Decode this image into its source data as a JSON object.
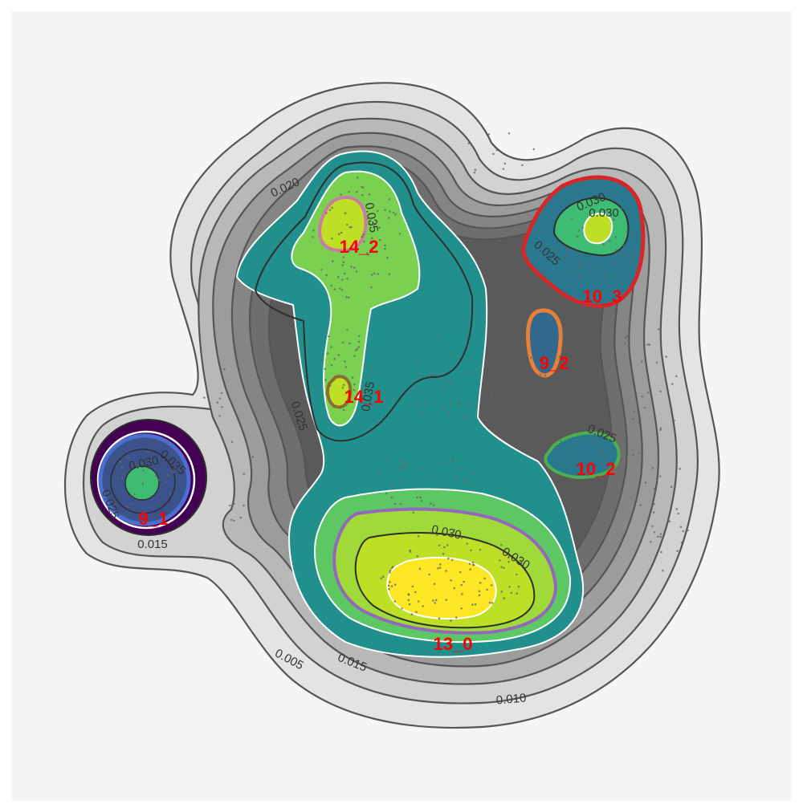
{
  "chart_data": {
    "type": "contour",
    "title": "",
    "xlabel": "",
    "ylabel": "",
    "grid": false,
    "legend": "none",
    "contour_levels": [
      0.005,
      0.01,
      0.015,
      0.02,
      0.025,
      0.03,
      0.035
    ],
    "contour_labels": [
      "0.005",
      "0.010",
      "0.015",
      "0.020",
      "0.025",
      "0.030",
      "0.035",
      "0.030",
      "0.025",
      "0.035",
      "0.030",
      "0.025",
      "0.035",
      "0.030",
      "0.025",
      "0.030",
      "0.015"
    ],
    "clusters": [
      {
        "name": "14_2",
        "color": "#cc79a7"
      },
      {
        "name": "14_1",
        "color": "#8c6d31"
      },
      {
        "name": "10_3",
        "color": "#d62728"
      },
      {
        "name": "9_2",
        "color": "#e8803a"
      },
      {
        "name": "10_2",
        "color": "#4caf50"
      },
      {
        "name": "9_1",
        "color": "#4a6fd0"
      },
      {
        "name": "13_0",
        "color": "#9467bd"
      }
    ],
    "colors": {
      "panel_background": "#f5f5f5",
      "low_density": "#e0e0e0",
      "mid_density": "#7f7f7f",
      "high_density_viridis": [
        "#440154",
        "#3b528b",
        "#21908d",
        "#5dc863",
        "#bddf26",
        "#fde725"
      ],
      "contour_line": "#555555",
      "cluster_label": "#ff0000"
    }
  }
}
